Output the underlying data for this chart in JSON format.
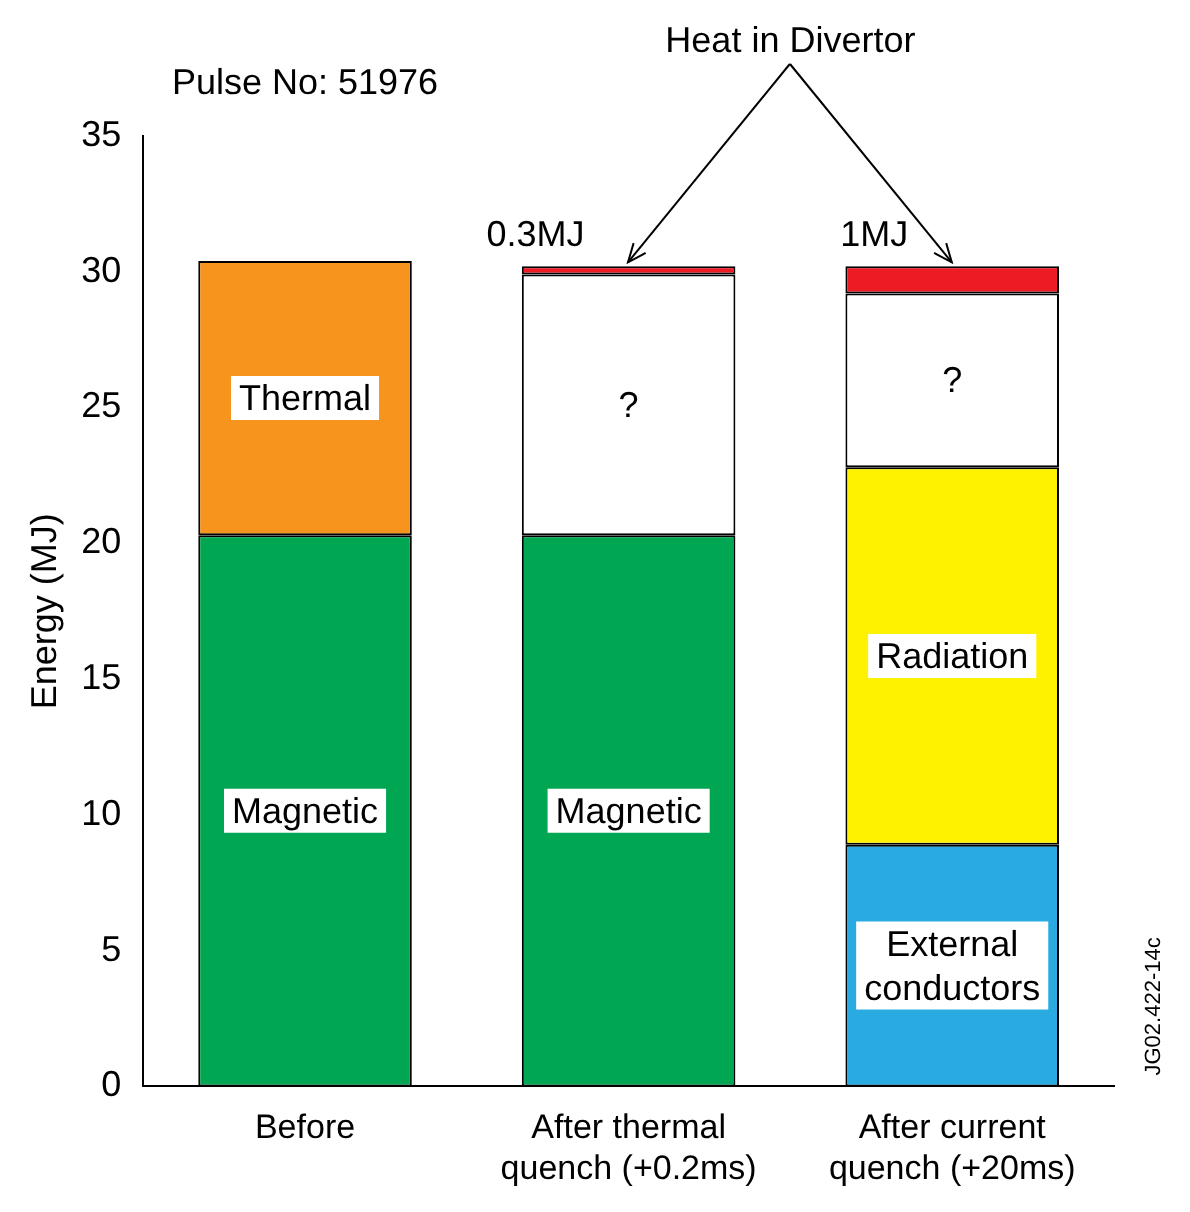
{
  "chart_data": {
    "type": "bar",
    "stacked": true,
    "ylabel": "Energy (MJ)",
    "categories": [
      "Before",
      "After thermal quench (+0.2ms)",
      "After current quench (+20ms)"
    ],
    "series": [
      {
        "name": "Magnetic",
        "color": "#00a651",
        "values": [
          20.3,
          20.3,
          null
        ]
      },
      {
        "name": "External conductors",
        "color": "#29abe2",
        "values": [
          null,
          null,
          8.9
        ]
      },
      {
        "name": "Radiation",
        "color": "#fff200",
        "values": [
          null,
          null,
          13.9
        ]
      },
      {
        "name": "Thermal",
        "color": "#f7941d",
        "values": [
          10.1,
          null,
          null
        ]
      },
      {
        "name": "?",
        "color": "#ffffff",
        "values": [
          null,
          9.6,
          6.4
        ]
      },
      {
        "name": "Heat in Divertor",
        "color": "#ed1c24",
        "values": [
          null,
          0.3,
          1
        ],
        "value_labels": [
          null,
          "0.3MJ",
          "1MJ"
        ]
      }
    ],
    "ylim": [
      0,
      35
    ],
    "yticks": [
      0,
      5,
      10,
      15,
      20,
      25,
      30,
      35
    ],
    "grid": false,
    "legend": false,
    "annotations": [
      "Pulse No: 51976",
      "JG02.422-14c"
    ]
  }
}
